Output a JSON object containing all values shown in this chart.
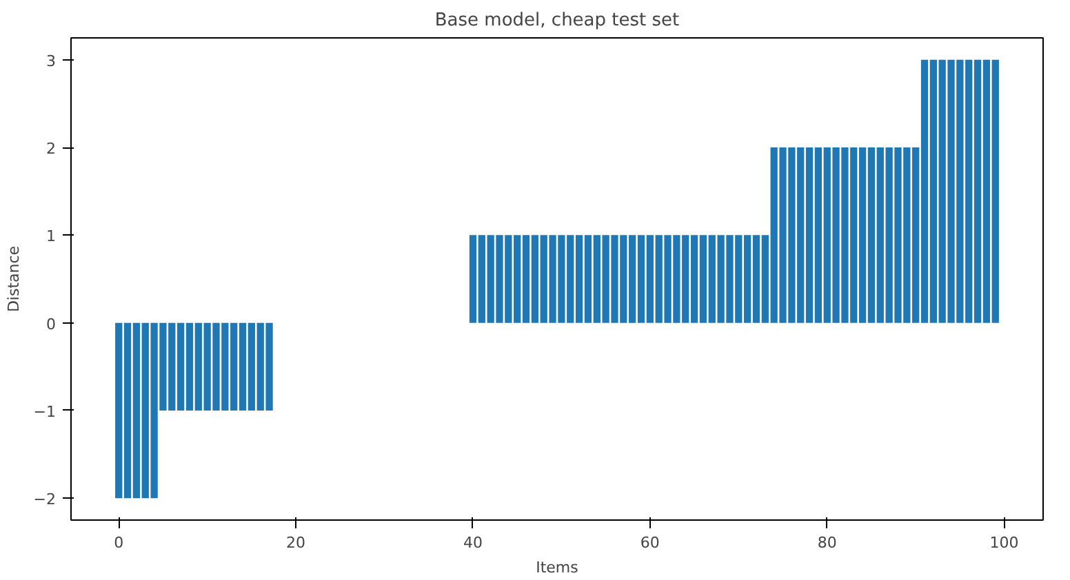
{
  "chart_data": {
    "type": "bar",
    "title": "Base model, cheap test set",
    "xlabel": "Items",
    "ylabel": "Distance",
    "x": [
      0,
      1,
      2,
      3,
      4,
      5,
      6,
      7,
      8,
      9,
      10,
      11,
      12,
      13,
      14,
      15,
      16,
      17,
      18,
      19,
      20,
      21,
      22,
      23,
      24,
      25,
      26,
      27,
      28,
      29,
      30,
      31,
      32,
      33,
      34,
      35,
      36,
      37,
      38,
      39,
      40,
      41,
      42,
      43,
      44,
      45,
      46,
      47,
      48,
      49,
      50,
      51,
      52,
      53,
      54,
      55,
      56,
      57,
      58,
      59,
      60,
      61,
      62,
      63,
      64,
      65,
      66,
      67,
      68,
      69,
      70,
      71,
      72,
      73,
      74,
      75,
      76,
      77,
      78,
      79,
      80,
      81,
      82,
      83,
      84,
      85,
      86,
      87,
      88,
      89,
      90,
      91,
      92,
      93,
      94,
      95,
      96,
      97,
      98,
      99
    ],
    "values": [
      -2,
      -2,
      -2,
      -2,
      -2,
      -1,
      -1,
      -1,
      -1,
      -1,
      -1,
      -1,
      -1,
      -1,
      -1,
      -1,
      -1,
      -1,
      0,
      0,
      0,
      0,
      0,
      0,
      0,
      0,
      0,
      0,
      0,
      0,
      0,
      0,
      0,
      0,
      0,
      0,
      0,
      0,
      0,
      0,
      1,
      1,
      1,
      1,
      1,
      1,
      1,
      1,
      1,
      1,
      1,
      1,
      1,
      1,
      1,
      1,
      1,
      1,
      1,
      1,
      1,
      1,
      1,
      1,
      1,
      1,
      1,
      1,
      1,
      1,
      1,
      1,
      1,
      1,
      2,
      2,
      2,
      2,
      2,
      2,
      2,
      2,
      2,
      2,
      2,
      2,
      2,
      2,
      2,
      2,
      2,
      3,
      3,
      3,
      3,
      3,
      3,
      3,
      3,
      3
    ],
    "color": "#1f77b4",
    "xlim": [
      -5.39,
      104.39
    ],
    "ylim": [
      -2.25,
      3.25
    ],
    "xticks": [
      0,
      20,
      40,
      60,
      80,
      100
    ],
    "yticks": [
      -2,
      -1,
      0,
      1,
      2,
      3
    ],
    "grid": false
  }
}
